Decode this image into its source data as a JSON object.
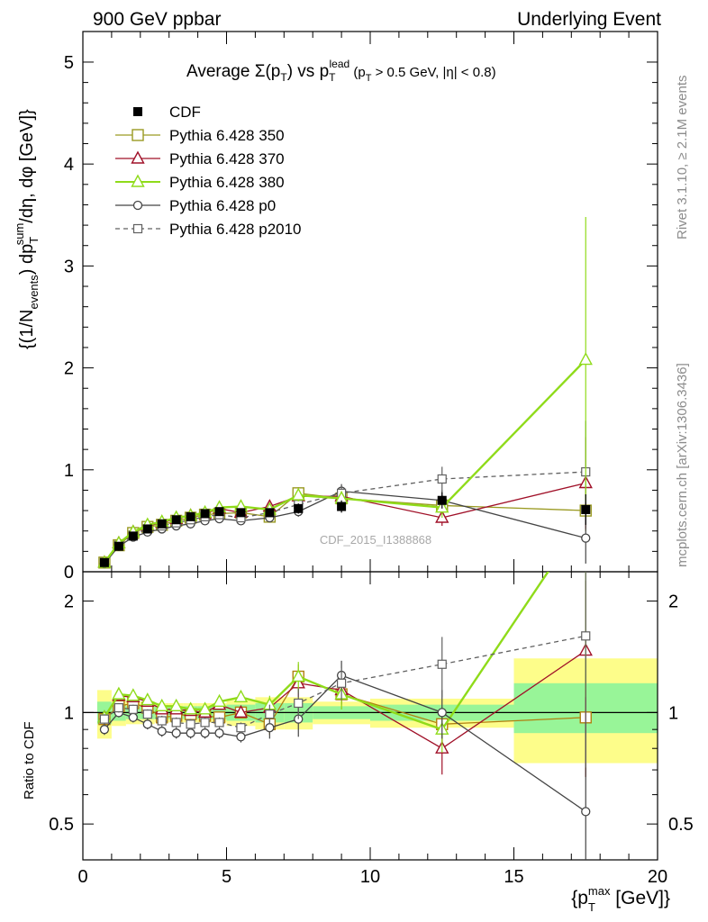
{
  "header": {
    "left": "900 GeV ppbar",
    "right": "Underlying Event"
  },
  "side_labels": {
    "rivet": "Rivet 3.1.10, ≥ 2.1M events",
    "mcplots": "mcplots.cern.ch [arXiv:1306.3436]"
  },
  "watermark": "CDF_2015_I1388868",
  "chart_data": [
    {
      "type": "scatter",
      "panel": "main",
      "title": "Average Σ(pT) vs pT^lead (pT > 0.5 GeV, |η| < 0.8)",
      "title_parts": {
        "a": "Average ",
        "b": "Σ(p",
        "c": "T",
        "d": ") vs p",
        "e": "T",
        "f": "lead",
        "g": " (p",
        "h": "T",
        "i": " > 0.5 GeV, |η| < 0.8)"
      },
      "ylabel": "{(1/Nevents) dpTsum/dη, dφ [GeV]}",
      "ylabel_parts": {
        "a": "{(1/N",
        "b": "events",
        "c": ") dp",
        "d": "T",
        "e": "sum",
        "f": "/dη, dφ [GeV]}"
      },
      "xlim": [
        0,
        20
      ],
      "ylim": [
        0,
        5.3
      ],
      "yticks": [
        "0",
        "1",
        "2",
        "3",
        "4",
        "5"
      ],
      "legend_position": "top-left",
      "series": [
        {
          "name": "CDF",
          "color": "#000000",
          "style": "data",
          "x": [
            0.75,
            1.25,
            1.75,
            2.25,
            2.75,
            3.25,
            3.75,
            4.25,
            4.75,
            5.5,
            6.5,
            7.5,
            9.0,
            12.5,
            17.5
          ],
          "y": [
            0.09,
            0.25,
            0.35,
            0.42,
            0.47,
            0.51,
            0.54,
            0.57,
            0.59,
            0.58,
            0.58,
            0.62,
            0.64,
            0.7,
            0.61
          ],
          "err": [
            0.01,
            0.02,
            0.02,
            0.02,
            0.02,
            0.02,
            0.02,
            0.02,
            0.03,
            0.03,
            0.04,
            0.05,
            0.06,
            0.08,
            0.15
          ]
        },
        {
          "name": "Pythia 6.428 350",
          "color": "#9a9a22",
          "marker": "square-open",
          "dash": "",
          "x": [
            0.75,
            1.25,
            1.75,
            2.25,
            2.75,
            3.25,
            3.75,
            4.25,
            4.75,
            5.5,
            6.5,
            7.5,
            9.0,
            12.5,
            17.5
          ],
          "y": [
            0.09,
            0.26,
            0.38,
            0.44,
            0.46,
            0.5,
            0.53,
            0.56,
            0.57,
            0.58,
            0.54,
            0.77,
            0.72,
            0.65,
            0.6
          ],
          "err": [
            0.01,
            0.02,
            0.02,
            0.02,
            0.02,
            0.02,
            0.02,
            0.02,
            0.02,
            0.02,
            0.04,
            0.06,
            0.06,
            0.1,
            0.2
          ]
        },
        {
          "name": "Pythia 6.428 370",
          "color": "#a01028",
          "marker": "triangle-open",
          "dash": "",
          "x": [
            0.75,
            1.25,
            1.75,
            2.25,
            2.75,
            3.25,
            3.75,
            4.25,
            4.75,
            5.5,
            6.5,
            7.5,
            9.0,
            12.5,
            17.5
          ],
          "y": [
            0.09,
            0.28,
            0.39,
            0.45,
            0.48,
            0.52,
            0.55,
            0.57,
            0.62,
            0.58,
            0.64,
            0.74,
            0.74,
            0.53,
            0.87
          ],
          "err": [
            0.01,
            0.02,
            0.02,
            0.02,
            0.02,
            0.02,
            0.02,
            0.02,
            0.02,
            0.02,
            0.04,
            0.05,
            0.07,
            0.08,
            0.45
          ]
        },
        {
          "name": "Pythia 6.428 380",
          "color": "#8fdb1a",
          "marker": "triangle-open",
          "dash": "",
          "x": [
            0.75,
            1.25,
            1.75,
            2.25,
            2.75,
            3.25,
            3.75,
            4.25,
            4.75,
            5.5,
            6.5,
            7.5,
            9.0,
            12.5,
            17.5
          ],
          "y": [
            0.09,
            0.28,
            0.39,
            0.46,
            0.49,
            0.53,
            0.55,
            0.58,
            0.63,
            0.64,
            0.61,
            0.75,
            0.72,
            0.63,
            2.08
          ],
          "err": [
            0.01,
            0.02,
            0.02,
            0.02,
            0.02,
            0.02,
            0.02,
            0.02,
            0.02,
            0.02,
            0.04,
            0.06,
            0.07,
            0.1,
            1.4
          ]
        },
        {
          "name": "Pythia 6.428 p0",
          "color": "#444444",
          "marker": "circle-open",
          "dash": "",
          "x": [
            0.75,
            1.25,
            1.75,
            2.25,
            2.75,
            3.25,
            3.75,
            4.25,
            4.75,
            5.5,
            6.5,
            7.5,
            9.0,
            12.5,
            17.5
          ],
          "y": [
            0.08,
            0.25,
            0.34,
            0.39,
            0.42,
            0.45,
            0.47,
            0.5,
            0.52,
            0.5,
            0.53,
            0.59,
            0.79,
            0.7,
            0.33
          ],
          "err": [
            0.01,
            0.02,
            0.02,
            0.02,
            0.02,
            0.02,
            0.02,
            0.02,
            0.02,
            0.02,
            0.04,
            0.05,
            0.07,
            0.1,
            0.25
          ]
        },
        {
          "name": "Pythia 6.428 p2010",
          "color": "#606060",
          "marker": "square-open-small",
          "dash": "5,4",
          "x": [
            0.75,
            1.25,
            1.75,
            2.25,
            2.75,
            3.25,
            3.75,
            4.25,
            4.75,
            5.5,
            6.5,
            7.5,
            9.0,
            12.5,
            17.5
          ],
          "y": [
            0.09,
            0.26,
            0.36,
            0.42,
            0.45,
            0.48,
            0.51,
            0.54,
            0.56,
            0.53,
            0.58,
            0.66,
            0.77,
            0.91,
            0.98
          ],
          "err": [
            0.01,
            0.02,
            0.02,
            0.02,
            0.02,
            0.02,
            0.02,
            0.02,
            0.02,
            0.02,
            0.04,
            0.05,
            0.07,
            0.12,
            0.5
          ]
        }
      ]
    },
    {
      "type": "line",
      "panel": "ratio",
      "ylabel": "Ratio to CDF",
      "xlabel": "{pTmax [GeV]}",
      "xlabel_parts": {
        "a": "{p",
        "b": "T",
        "c": "max",
        "d": " [GeV]}"
      },
      "xlim": [
        0,
        20
      ],
      "ylim": [
        0.4,
        2.4
      ],
      "yscale": "log",
      "xticks": [
        "0",
        "5",
        "10",
        "15",
        "20"
      ],
      "yticks_left": [
        "0.5",
        "1",
        "2"
      ],
      "yticks_right": [
        "0.5",
        "1",
        "2"
      ],
      "uncertainty_bands": {
        "x_edges": [
          0.5,
          1.0,
          1.5,
          2.0,
          2.5,
          3.0,
          3.5,
          4.0,
          4.5,
          5.0,
          6.0,
          7.0,
          8.0,
          10.0,
          15.0,
          20.0
        ],
        "stat_low": [
          0.93,
          0.95,
          0.96,
          0.96,
          0.96,
          0.96,
          0.96,
          0.96,
          0.96,
          0.95,
          0.94,
          0.94,
          0.96,
          0.95,
          0.88
        ],
        "stat_high": [
          1.07,
          1.05,
          1.04,
          1.04,
          1.04,
          1.04,
          1.04,
          1.04,
          1.04,
          1.05,
          1.06,
          1.06,
          1.04,
          1.05,
          1.2
        ],
        "tot_low": [
          0.85,
          0.92,
          0.93,
          0.93,
          0.94,
          0.94,
          0.94,
          0.94,
          0.94,
          0.92,
          0.9,
          0.9,
          0.93,
          0.91,
          0.73
        ],
        "tot_high": [
          1.15,
          1.08,
          1.07,
          1.07,
          1.06,
          1.06,
          1.06,
          1.06,
          1.06,
          1.08,
          1.1,
          1.1,
          1.07,
          1.09,
          1.4
        ],
        "stat_color": "#98f598",
        "total_color": "#fdfd8a"
      },
      "series": [
        {
          "name": "Pythia 6.428 350",
          "color": "#b08010",
          "marker": "square-open",
          "dash": "",
          "x": [
            0.75,
            1.25,
            1.75,
            2.25,
            2.75,
            3.25,
            3.75,
            4.25,
            4.75,
            5.5,
            6.5,
            7.5,
            9.0,
            12.5,
            17.5
          ],
          "y": [
            0.96,
            1.04,
            1.06,
            1.03,
            0.97,
            0.98,
            0.99,
            0.98,
            0.97,
            1.0,
            0.93,
            1.25,
            1.12,
            0.93,
            0.97
          ],
          "err": [
            0.03,
            0.03,
            0.03,
            0.03,
            0.03,
            0.03,
            0.03,
            0.03,
            0.03,
            0.03,
            0.06,
            0.1,
            0.1,
            0.1,
            0.3
          ]
        },
        {
          "name": "Pythia 6.428 370",
          "color": "#a01028",
          "marker": "triangle-open",
          "dash": "",
          "x": [
            0.75,
            1.25,
            1.75,
            2.25,
            2.75,
            3.25,
            3.75,
            4.25,
            4.75,
            5.5,
            6.5,
            7.5,
            9.0,
            12.5,
            17.5
          ],
          "y": [
            0.97,
            1.11,
            1.1,
            1.07,
            1.02,
            1.02,
            1.01,
            1.0,
            1.05,
            1.0,
            1.03,
            1.2,
            1.15,
            0.8,
            1.47
          ],
          "err": [
            0.03,
            0.03,
            0.03,
            0.03,
            0.03,
            0.03,
            0.03,
            0.03,
            0.03,
            0.03,
            0.06,
            0.1,
            0.1,
            0.12,
            0.8
          ]
        },
        {
          "name": "Pythia 6.428 380",
          "color": "#8fdb1a",
          "marker": "triangle-open",
          "dash": "",
          "x": [
            0.75,
            1.25,
            1.75,
            2.25,
            2.75,
            3.25,
            3.75,
            4.25,
            4.75,
            5.5,
            6.5,
            7.5,
            9.0,
            12.5,
            17.5
          ],
          "y": [
            0.97,
            1.12,
            1.11,
            1.08,
            1.04,
            1.04,
            1.02,
            1.02,
            1.07,
            1.1,
            1.05,
            1.25,
            1.12,
            0.9,
            3.4
          ],
          "err": [
            0.03,
            0.03,
            0.03,
            0.03,
            0.03,
            0.03,
            0.03,
            0.03,
            0.03,
            0.03,
            0.06,
            0.12,
            0.1,
            0.12,
            2.3
          ]
        },
        {
          "name": "Pythia 6.428 p0",
          "color": "#444444",
          "marker": "circle-open",
          "dash": "",
          "x": [
            0.75,
            1.25,
            1.75,
            2.25,
            2.75,
            3.25,
            3.75,
            4.25,
            4.75,
            5.5,
            6.5,
            7.5,
            9.0,
            12.5,
            17.5
          ],
          "y": [
            0.9,
            1.0,
            0.97,
            0.93,
            0.89,
            0.88,
            0.88,
            0.88,
            0.88,
            0.86,
            0.91,
            0.96,
            1.26,
            1.0,
            0.54
          ],
          "err": [
            0.03,
            0.03,
            0.03,
            0.03,
            0.03,
            0.03,
            0.03,
            0.03,
            0.03,
            0.03,
            0.06,
            0.1,
            0.12,
            0.15,
            0.4
          ]
        },
        {
          "name": "Pythia 6.428 p2010",
          "color": "#606060",
          "marker": "square-open-small",
          "dash": "5,4",
          "x": [
            0.75,
            1.25,
            1.75,
            2.25,
            2.75,
            3.25,
            3.75,
            4.25,
            4.75,
            5.5,
            6.5,
            7.5,
            9.0,
            12.5,
            17.5
          ],
          "y": [
            0.96,
            1.03,
            1.02,
            0.99,
            0.95,
            0.94,
            0.93,
            0.94,
            0.94,
            0.91,
            0.99,
            1.06,
            1.2,
            1.35,
            1.61
          ],
          "err": [
            0.03,
            0.03,
            0.03,
            0.03,
            0.03,
            0.03,
            0.03,
            0.03,
            0.03,
            0.03,
            0.06,
            0.1,
            0.12,
            0.25,
            0.9
          ]
        }
      ]
    }
  ]
}
